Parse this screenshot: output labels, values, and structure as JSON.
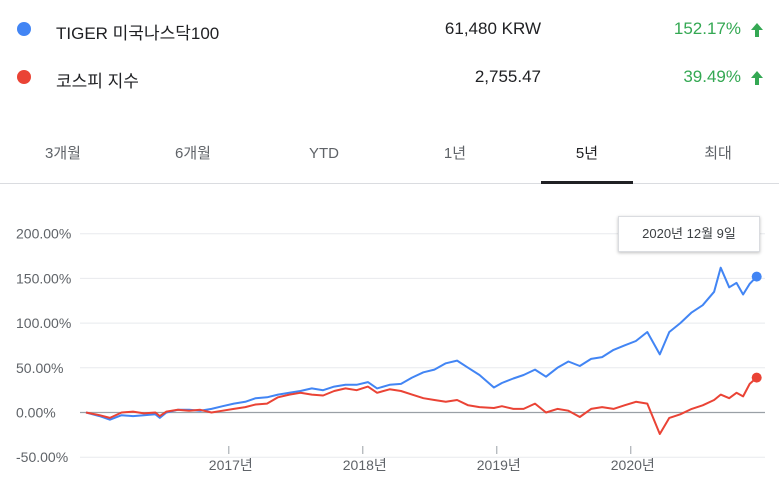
{
  "legend": [
    {
      "name": "TIGER 미국나스닥100",
      "price": "61,480 KRW",
      "change": "152.17%",
      "color": "#4285f4",
      "change_color": "#34a853"
    },
    {
      "name": "코스피 지수",
      "price": "2,755.47",
      "change": "39.49%",
      "color": "#ea4335",
      "change_color": "#34a853"
    }
  ],
  "tabs": [
    {
      "label": "3개월",
      "active": false
    },
    {
      "label": "6개월",
      "active": false
    },
    {
      "label": "YTD",
      "active": false
    },
    {
      "label": "1년",
      "active": false
    },
    {
      "label": "5년",
      "active": true
    },
    {
      "label": "최대",
      "active": false
    }
  ],
  "tooltip": {
    "date": "2020년 12월 9일"
  },
  "chart_data": {
    "type": "line",
    "y_ticks": [
      "200.00%",
      "150.00%",
      "100.00%",
      "50.00%",
      "0.00%",
      "-50.00%"
    ],
    "y_tick_values": [
      200,
      150,
      100,
      50,
      0,
      -50
    ],
    "x_ticks": [
      "2017년",
      "2018년",
      "2019년",
      "2020년"
    ],
    "x_tick_values": [
      "2017-01-01",
      "2018-01-01",
      "2019-01-01",
      "2020-01-01"
    ],
    "ylim": [
      -55,
      205
    ],
    "xlim": [
      "2015-12-09",
      "2020-12-18"
    ],
    "grid": "horizontal",
    "series": [
      {
        "name": "TIGER 미국나스닥100",
        "color": "#4285f4",
        "x": [
          "2015-12-09",
          "2016-01-15",
          "2016-02-12",
          "2016-03-15",
          "2016-04-15",
          "2016-05-15",
          "2016-06-15",
          "2016-06-27",
          "2016-07-15",
          "2016-08-15",
          "2016-09-15",
          "2016-10-15",
          "2016-11-15",
          "2016-12-15",
          "2017-01-15",
          "2017-02-15",
          "2017-03-15",
          "2017-04-15",
          "2017-05-15",
          "2017-06-15",
          "2017-07-15",
          "2017-08-15",
          "2017-09-15",
          "2017-10-15",
          "2017-11-15",
          "2017-12-15",
          "2018-01-15",
          "2018-02-09",
          "2018-03-15",
          "2018-04-15",
          "2018-05-15",
          "2018-06-15",
          "2018-07-15",
          "2018-08-15",
          "2018-09-15",
          "2018-10-15",
          "2018-11-15",
          "2018-12-24",
          "2019-01-15",
          "2019-02-15",
          "2019-03-15",
          "2019-04-15",
          "2019-05-15",
          "2019-06-15",
          "2019-07-15",
          "2019-08-15",
          "2019-09-15",
          "2019-10-15",
          "2019-11-15",
          "2019-12-15",
          "2020-01-15",
          "2020-02-15",
          "2020-03-20",
          "2020-04-15",
          "2020-05-15",
          "2020-06-15",
          "2020-07-15",
          "2020-08-15",
          "2020-09-02",
          "2020-09-25",
          "2020-10-15",
          "2020-11-02",
          "2020-11-20",
          "2020-12-09"
        ],
        "values": [
          0,
          -4,
          -8,
          -3,
          -4,
          -3,
          -2,
          -6,
          0,
          3,
          3,
          2,
          4,
          7,
          10,
          12,
          16,
          17,
          20,
          22,
          24,
          27,
          25,
          29,
          31,
          31,
          34,
          27,
          31,
          32,
          39,
          45,
          48,
          55,
          58,
          50,
          42,
          28,
          33,
          38,
          42,
          48,
          40,
          50,
          57,
          52,
          60,
          62,
          70,
          75,
          80,
          90,
          65,
          90,
          100,
          112,
          120,
          135,
          162,
          140,
          145,
          132,
          144,
          152
        ]
      },
      {
        "name": "코스피 지수",
        "color": "#ea4335",
        "x": [
          "2015-12-09",
          "2016-01-15",
          "2016-02-12",
          "2016-03-15",
          "2016-04-15",
          "2016-05-15",
          "2016-06-15",
          "2016-06-27",
          "2016-07-15",
          "2016-08-15",
          "2016-09-15",
          "2016-10-15",
          "2016-11-15",
          "2016-12-15",
          "2017-01-15",
          "2017-02-15",
          "2017-03-15",
          "2017-04-15",
          "2017-05-15",
          "2017-06-15",
          "2017-07-15",
          "2017-08-15",
          "2017-09-15",
          "2017-10-15",
          "2017-11-15",
          "2017-12-15",
          "2018-01-15",
          "2018-02-09",
          "2018-03-15",
          "2018-04-15",
          "2018-05-15",
          "2018-06-15",
          "2018-07-15",
          "2018-08-15",
          "2018-09-15",
          "2018-10-15",
          "2018-11-15",
          "2018-12-24",
          "2019-01-15",
          "2019-02-15",
          "2019-03-15",
          "2019-04-15",
          "2019-05-15",
          "2019-06-15",
          "2019-07-15",
          "2019-08-15",
          "2019-09-15",
          "2019-10-15",
          "2019-11-15",
          "2019-12-15",
          "2020-01-15",
          "2020-02-15",
          "2020-03-20",
          "2020-04-15",
          "2020-05-15",
          "2020-06-15",
          "2020-07-15",
          "2020-08-15",
          "2020-09-02",
          "2020-09-25",
          "2020-10-15",
          "2020-11-02",
          "2020-11-20",
          "2020-12-09"
        ],
        "values": [
          0,
          -3,
          -6,
          0,
          1,
          -1,
          0,
          -4,
          1,
          3,
          2,
          3,
          0,
          2,
          4,
          6,
          9,
          10,
          17,
          20,
          22,
          20,
          19,
          24,
          27,
          25,
          29,
          22,
          26,
          24,
          20,
          16,
          14,
          12,
          14,
          8,
          6,
          5,
          7,
          4,
          4,
          10,
          0,
          4,
          2,
          -5,
          4,
          6,
          4,
          8,
          12,
          10,
          -24,
          -6,
          -2,
          4,
          8,
          14,
          20,
          16,
          22,
          18,
          32,
          39
        ]
      }
    ]
  }
}
